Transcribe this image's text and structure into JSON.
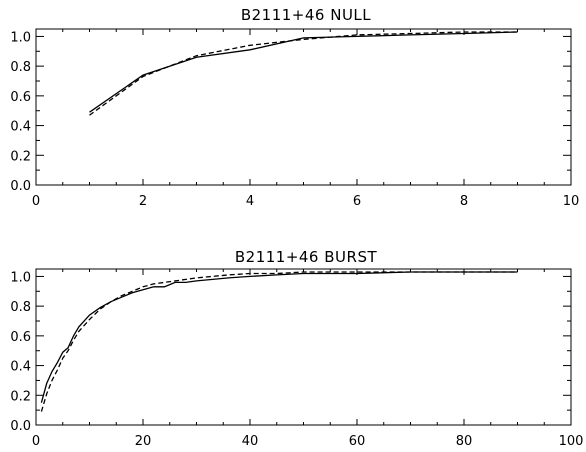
{
  "chart_data": [
    {
      "type": "line",
      "title": "B2111+46  NULL",
      "xlabel": "",
      "ylabel": "",
      "xlim": [
        0,
        10
      ],
      "ylim": [
        0,
        1.05
      ],
      "xticks": [
        0,
        2,
        4,
        6,
        8,
        10
      ],
      "yticks": [
        0.0,
        0.2,
        0.4,
        0.6,
        0.8,
        1.0
      ],
      "xtick_labels": [
        "0",
        "2",
        "4",
        "6",
        "8",
        "10"
      ],
      "ytick_labels": [
        "0.0",
        "0.2",
        "0.4",
        "0.6",
        "0.8",
        "1.0"
      ],
      "grid": false,
      "series": [
        {
          "style": "solid",
          "x": [
            1,
            2,
            3,
            4,
            5,
            6,
            7,
            8,
            9
          ],
          "y": [
            0.49,
            0.74,
            0.86,
            0.91,
            0.99,
            1.0,
            1.01,
            1.02,
            1.03
          ]
        },
        {
          "style": "dashed",
          "x": [
            1,
            2,
            3,
            4,
            5,
            6,
            7,
            8,
            9
          ],
          "y": [
            0.47,
            0.73,
            0.87,
            0.94,
            0.98,
            1.01,
            1.02,
            1.03,
            1.03
          ]
        }
      ]
    },
    {
      "type": "line",
      "title": "B2111+46  BURST",
      "xlabel": "",
      "ylabel": "",
      "xlim": [
        0,
        100
      ],
      "ylim": [
        0,
        1.05
      ],
      "xticks": [
        0,
        20,
        40,
        60,
        80,
        100
      ],
      "yticks": [
        0.0,
        0.2,
        0.4,
        0.6,
        0.8,
        1.0
      ],
      "xtick_labels": [
        "0",
        "20",
        "40",
        "60",
        "80",
        "100"
      ],
      "ytick_labels": [
        "0.0",
        "0.2",
        "0.4",
        "0.6",
        "0.8",
        "1.0"
      ],
      "grid": false,
      "series": [
        {
          "style": "solid",
          "x": [
            1,
            2,
            3,
            4,
            5,
            6,
            7,
            8,
            10,
            12,
            14,
            16,
            18,
            20,
            22,
            24,
            26,
            28,
            30,
            33,
            36,
            40,
            45,
            50,
            60,
            70,
            80,
            90
          ],
          "y": [
            0.15,
            0.28,
            0.36,
            0.42,
            0.49,
            0.52,
            0.6,
            0.66,
            0.74,
            0.79,
            0.83,
            0.86,
            0.89,
            0.91,
            0.93,
            0.93,
            0.96,
            0.96,
            0.97,
            0.98,
            0.99,
            1.0,
            1.01,
            1.02,
            1.02,
            1.03,
            1.03,
            1.03
          ]
        },
        {
          "style": "dashed",
          "x": [
            1,
            2,
            3,
            4,
            5,
            6,
            7,
            8,
            10,
            12,
            14,
            16,
            18,
            20,
            22,
            24,
            26,
            28,
            30,
            33,
            36,
            40,
            45,
            50,
            60,
            70,
            80,
            90
          ],
          "y": [
            0.09,
            0.21,
            0.3,
            0.37,
            0.45,
            0.5,
            0.57,
            0.63,
            0.71,
            0.78,
            0.83,
            0.87,
            0.9,
            0.93,
            0.95,
            0.96,
            0.97,
            0.98,
            0.99,
            1.0,
            1.01,
            1.02,
            1.02,
            1.03,
            1.03,
            1.03,
            1.03,
            1.03
          ]
        }
      ]
    }
  ]
}
